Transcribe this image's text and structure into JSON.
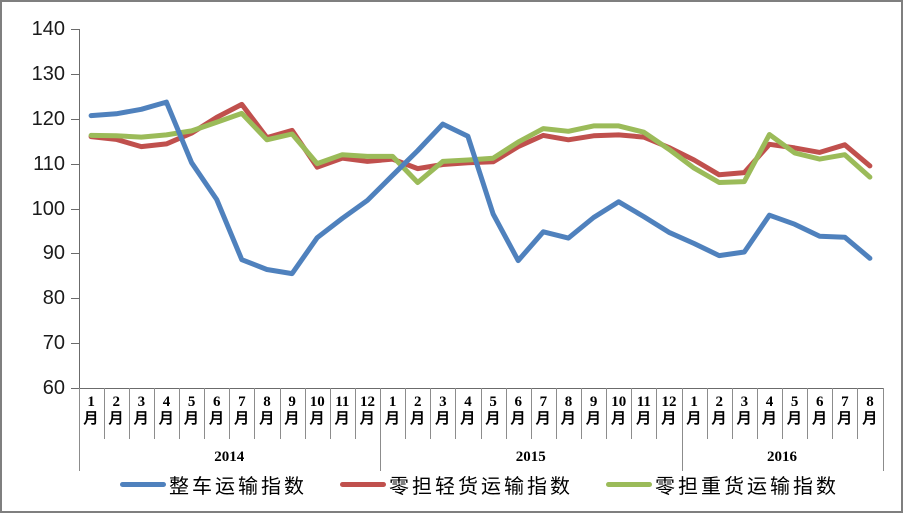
{
  "figure": {
    "background": "#ffffff",
    "border_color": "#7f7f7f"
  },
  "chart_data": {
    "type": "line",
    "title": "",
    "xlabel": "",
    "ylabel": "",
    "ylim": [
      60,
      140
    ],
    "yticks": [
      140,
      130,
      120,
      110,
      100,
      90,
      80,
      70,
      60
    ],
    "grid": false,
    "legend_position": "bottom",
    "month_suffix": "月",
    "x_groups": [
      {
        "year": "2014",
        "months": [
          "1",
          "2",
          "3",
          "4",
          "5",
          "6",
          "7",
          "8",
          "9",
          "10",
          "11",
          "12"
        ]
      },
      {
        "year": "2015",
        "months": [
          "1",
          "2",
          "3",
          "4",
          "5",
          "6",
          "7",
          "8",
          "9",
          "10",
          "11",
          "12"
        ]
      },
      {
        "year": "2016",
        "months": [
          "1",
          "2",
          "3",
          "4",
          "5",
          "6",
          "7",
          "8"
        ]
      }
    ],
    "series": [
      {
        "name": "整车运输指数",
        "color": "#4F81BD",
        "values": [
          120.7,
          121.1,
          122.1,
          123.7,
          110.2,
          102.0,
          88.6,
          86.4,
          85.5,
          93.5,
          97.8,
          101.8,
          107.4,
          112.9,
          118.8,
          116.1,
          98.8,
          88.4,
          94.8,
          93.4,
          98.0,
          101.5,
          98.2,
          94.7,
          92.2,
          89.5,
          90.3,
          98.5,
          96.5,
          93.8,
          93.6,
          88.9
        ]
      },
      {
        "name": "零担轻货运输指数",
        "color": "#C0504D",
        "values": [
          116.0,
          115.4,
          113.8,
          114.4,
          116.8,
          120.3,
          123.2,
          115.8,
          117.4,
          109.2,
          111.2,
          110.5,
          111.0,
          108.9,
          109.8,
          110.2,
          110.4,
          113.8,
          116.3,
          115.3,
          116.2,
          116.4,
          115.9,
          113.6,
          110.8,
          107.5,
          108.0,
          114.3,
          113.5,
          112.5,
          114.2,
          109.5
        ]
      },
      {
        "name": "零担重货运输指数",
        "color": "#9BBB59",
        "values": [
          116.3,
          116.2,
          115.9,
          116.4,
          117.3,
          119.2,
          121.2,
          115.3,
          116.6,
          110.0,
          112.0,
          111.6,
          111.6,
          105.8,
          110.5,
          110.8,
          111.2,
          114.8,
          117.8,
          117.2,
          118.4,
          118.4,
          117.0,
          113.2,
          109.0,
          105.8,
          106.0,
          116.5,
          112.4,
          111.0,
          112.0,
          107.0
        ]
      }
    ]
  }
}
